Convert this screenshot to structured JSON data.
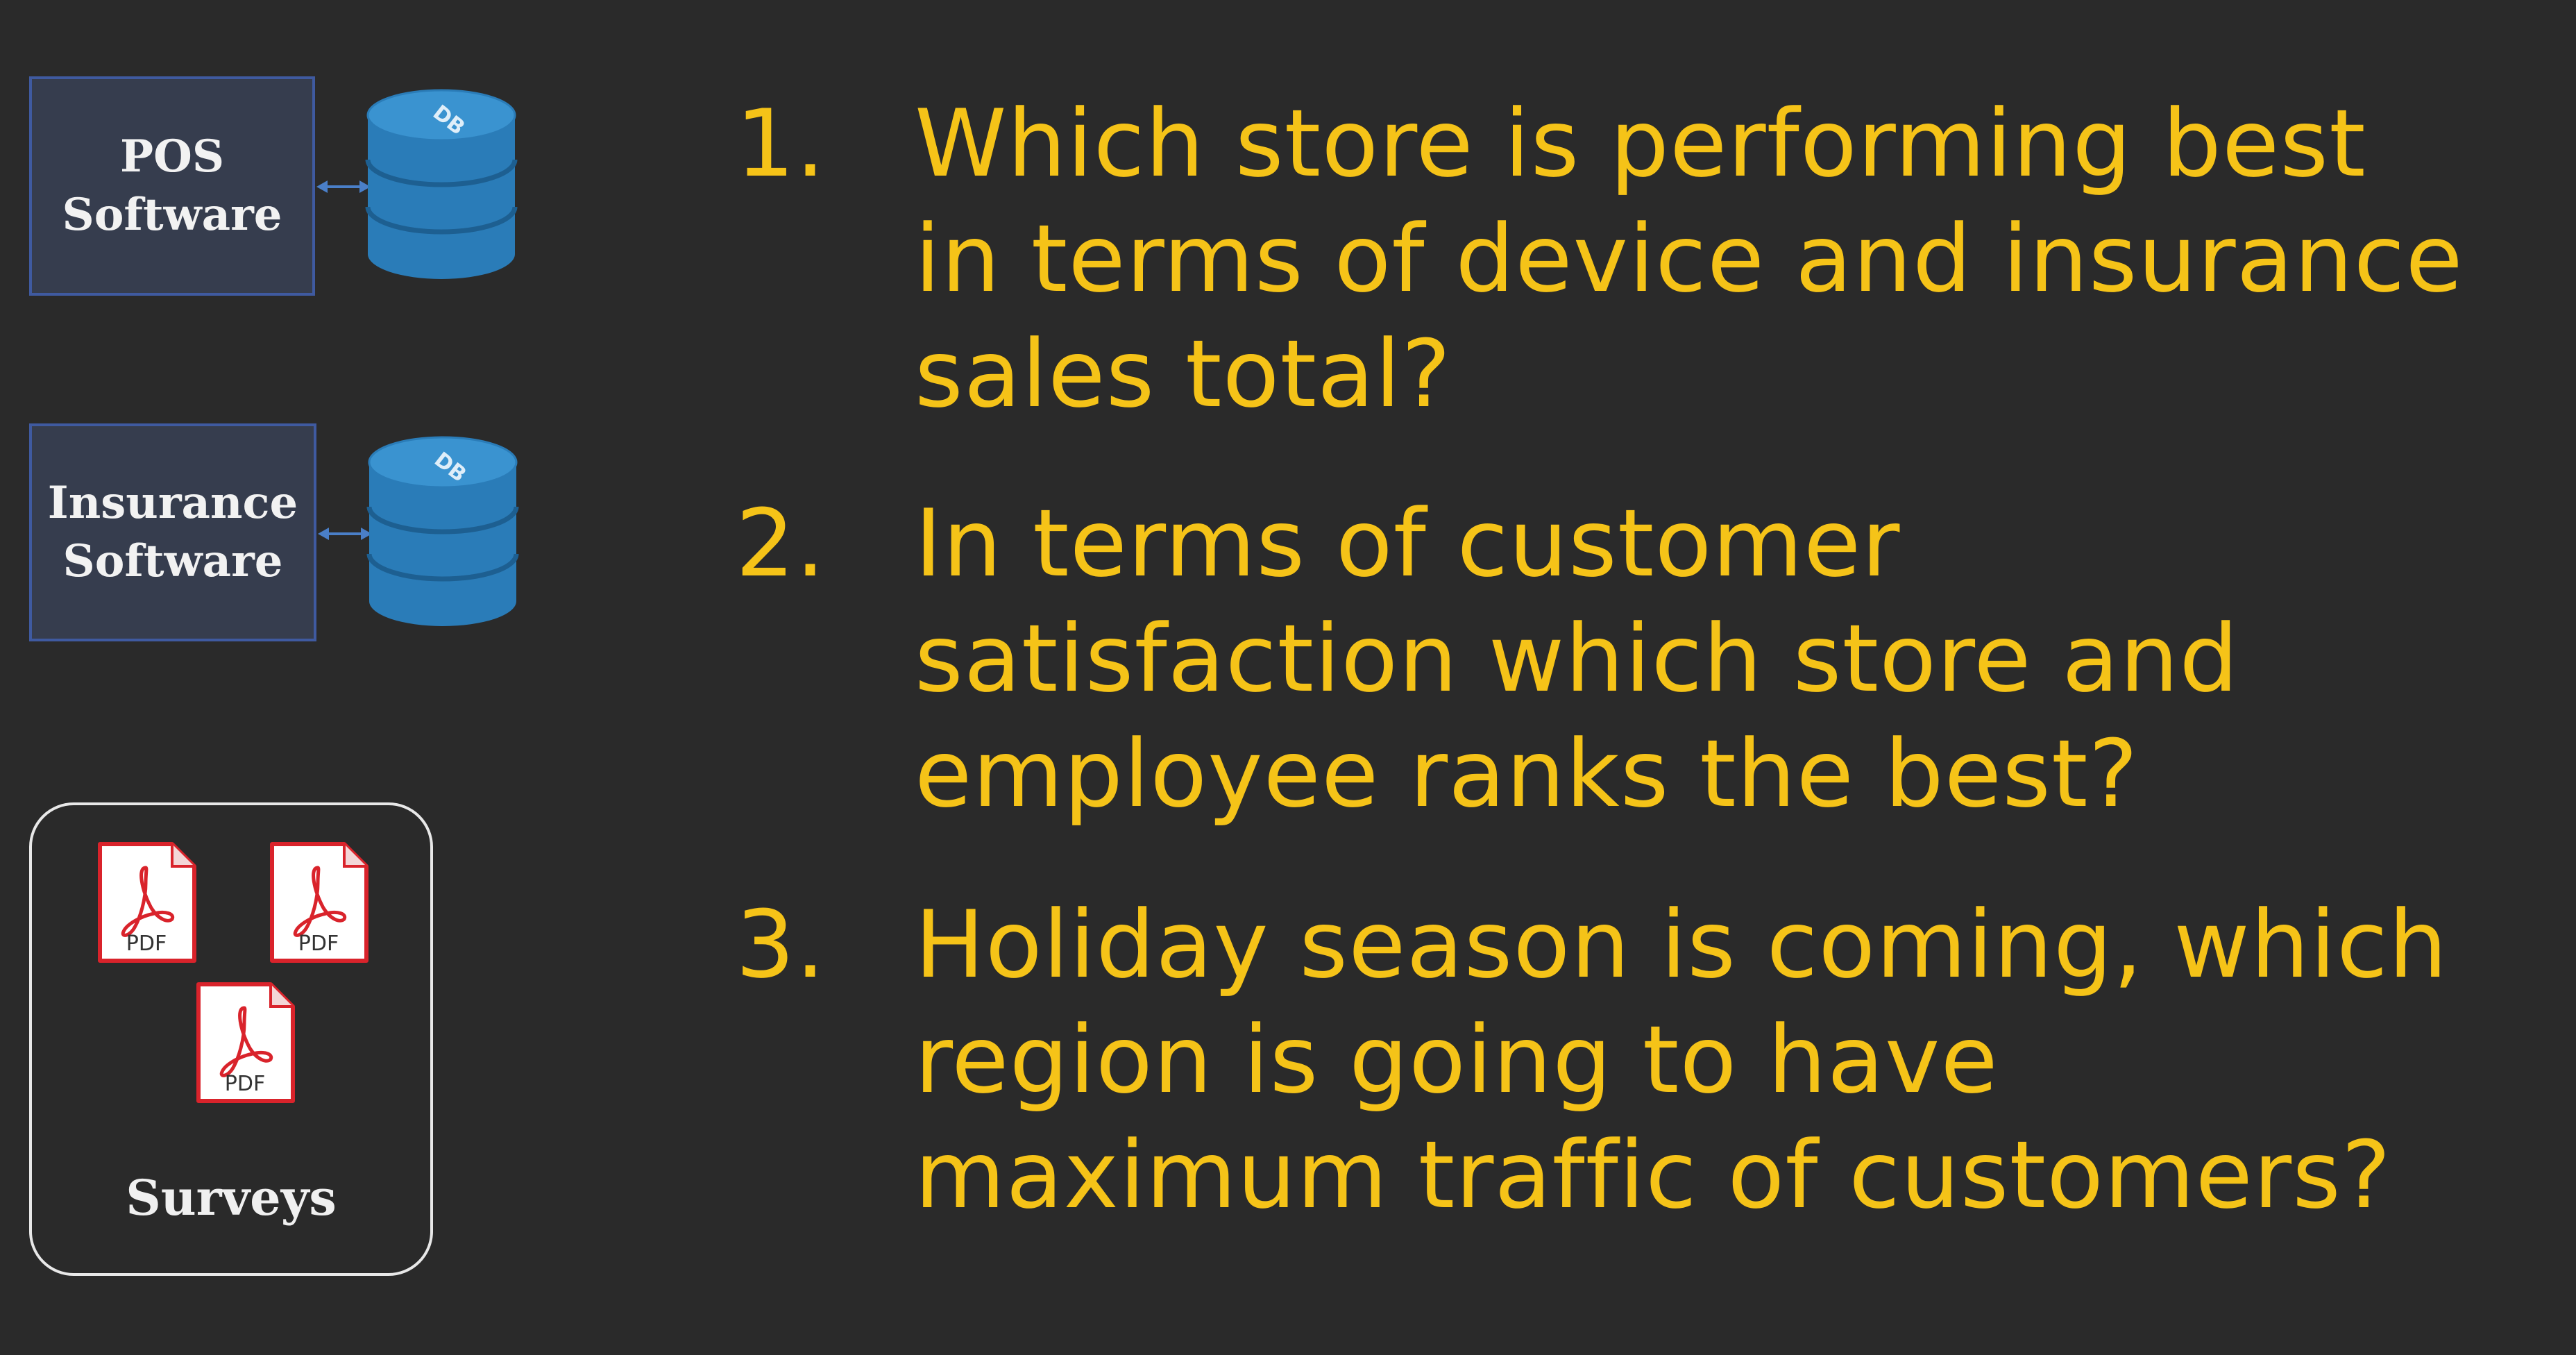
{
  "systems": [
    {
      "lines": [
        "POS",
        "Software"
      ],
      "db_label": "DB"
    },
    {
      "lines": [
        "Insurance",
        "Software"
      ],
      "db_label": "DB"
    }
  ],
  "surveys": {
    "label": "Surveys",
    "pdf_label": "PDF",
    "icon": "pdf-file-icon"
  },
  "questions": [
    {
      "number": "1.",
      "lines": [
        "Which store is performing best",
        "in terms of device and insurance",
        "sales total?"
      ]
    },
    {
      "number": "2.",
      "lines": [
        "In terms of customer",
        "satisfaction which store and",
        "employee ranks the best?"
      ]
    },
    {
      "number": "3.",
      "lines": [
        "Holiday season is coming, which",
        "region is going to have",
        "maximum traffic of customers?"
      ]
    }
  ],
  "colors": {
    "background": "#2a2a2a",
    "question_text": "#f5c318",
    "box_fill": "#363d4e",
    "box_border": "#3f5aa0",
    "db_blue": "#2a7cb8",
    "pdf_red": "#d9232b"
  }
}
